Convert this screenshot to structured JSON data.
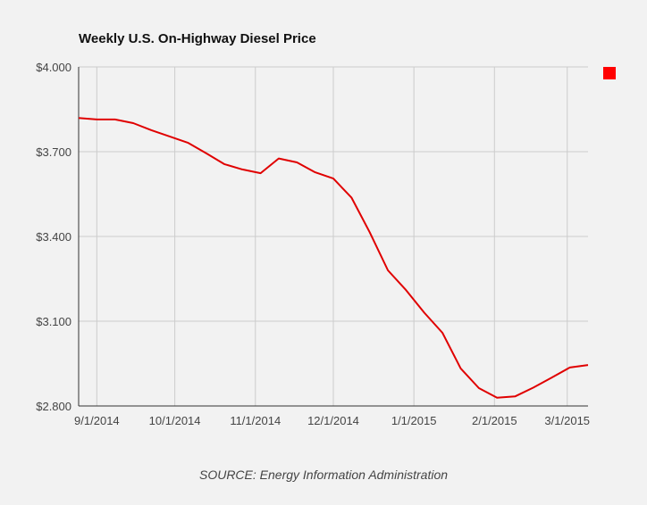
{
  "chart_data": {
    "type": "line",
    "title": "Weekly U.S. On-Highway Diesel Price",
    "source": "SOURCE: Energy Information Administration",
    "x": [
      "2014-08-25",
      "2014-09-01",
      "2014-09-08",
      "2014-09-15",
      "2014-09-22",
      "2014-09-29",
      "2014-10-06",
      "2014-10-13",
      "2014-10-20",
      "2014-10-27",
      "2014-11-03",
      "2014-11-10",
      "2014-11-17",
      "2014-11-24",
      "2014-12-01",
      "2014-12-08",
      "2014-12-15",
      "2014-12-22",
      "2014-12-29",
      "2015-01-05",
      "2015-01-12",
      "2015-01-19",
      "2015-01-26",
      "2015-02-02",
      "2015-02-09",
      "2015-02-16",
      "2015-02-23",
      "2015-03-02",
      "2015-03-09"
    ],
    "series": [
      {
        "color": "#e00000",
        "values": [
          3.819,
          3.814,
          3.814,
          3.801,
          3.776,
          3.754,
          3.732,
          3.695,
          3.656,
          3.637,
          3.624,
          3.676,
          3.662,
          3.627,
          3.605,
          3.537,
          3.415,
          3.28,
          3.21,
          3.13,
          3.059,
          2.933,
          2.863,
          2.829,
          2.834,
          2.865,
          2.9,
          2.936,
          2.945
        ]
      }
    ],
    "xlim": [
      "2014-08-25",
      "2015-03-09"
    ],
    "ylim": [
      2.8,
      4.0
    ],
    "y_ticks": [
      "$4.000",
      "$3.700",
      "$3.400",
      "$3.100",
      "$2.800"
    ],
    "y_tick_values": [
      4.0,
      3.7,
      3.4,
      3.1,
      2.8
    ],
    "x_ticks": [
      "9/1/2014",
      "10/1/2014",
      "11/1/2014",
      "12/1/2014",
      "1/1/2015",
      "2/1/2015",
      "3/1/2015"
    ],
    "x_tick_dates": [
      "2014-09-01",
      "2014-10-01",
      "2014-11-01",
      "2014-12-01",
      "2015-01-01",
      "2015-02-01",
      "2015-03-01"
    ],
    "grid": true,
    "legend": {
      "position": "top-right",
      "color": "#ff0000"
    }
  }
}
